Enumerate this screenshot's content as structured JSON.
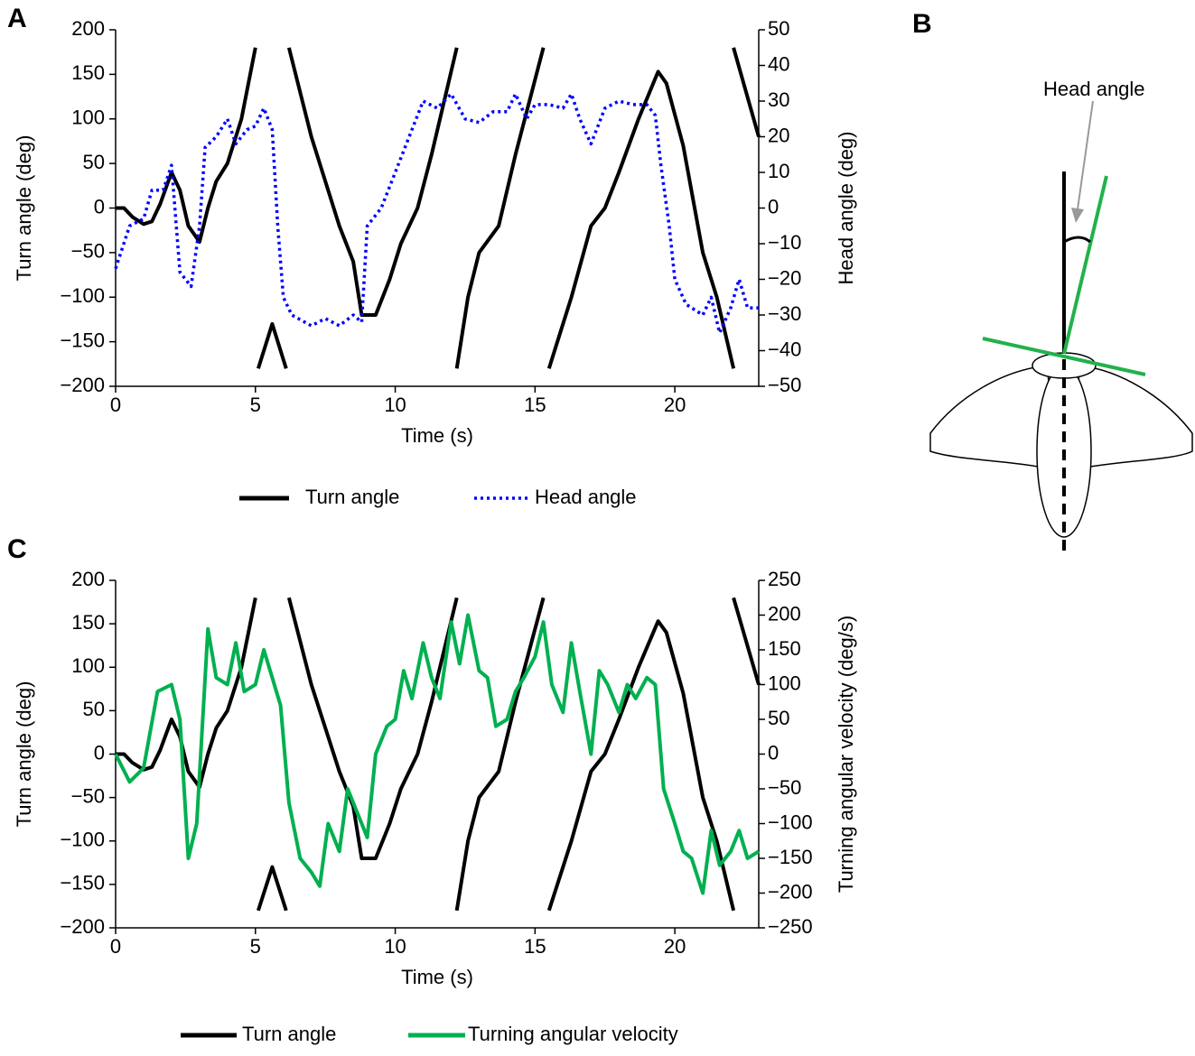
{
  "chart_data": [
    {
      "type": "line",
      "panel_label": "A",
      "xlabel": "Time (s)",
      "ylabel": "Turn angle (deg)",
      "y2label": "Head angle (deg)",
      "xlim": [
        0,
        23
      ],
      "xticks": [
        0,
        5,
        10,
        15,
        20
      ],
      "ylim": [
        -200,
        200
      ],
      "yticks": [
        {
          "value": -200,
          "label": "−200"
        },
        {
          "value": -150,
          "label": "−150"
        },
        {
          "value": -100,
          "label": "−100"
        },
        {
          "value": -50,
          "label": "−50"
        },
        0,
        50,
        100,
        150,
        200
      ],
      "y2lim": [
        -50,
        50
      ],
      "y2ticks": [
        {
          "value": -50,
          "label": "−50"
        },
        {
          "value": -40,
          "label": "−40"
        },
        {
          "value": -30,
          "label": "−30"
        },
        {
          "value": -20,
          "label": "−20"
        },
        {
          "value": -10,
          "label": "−10"
        },
        0,
        10,
        20,
        30,
        40,
        50
      ],
      "series": [
        {
          "name": "Turn angle",
          "color": "#000000",
          "dash": "solid",
          "x": [
            0,
            0.3,
            0.6,
            1,
            1.3,
            1.6,
            2,
            2.3,
            2.6,
            3,
            3.3,
            3.6,
            4,
            4.5,
            5,
            null,
            5.1,
            5.6,
            6.1,
            null,
            6.2,
            7,
            8,
            8.5,
            8.8,
            9.3,
            9.8,
            10.2,
            10.8,
            11.3,
            12.2,
            null,
            12.2,
            12.6,
            13,
            13.7,
            14.3,
            15.3,
            null,
            15.5,
            15.8,
            16.3,
            17,
            17.5,
            18,
            18.7,
            19.4,
            19.7,
            20.3,
            21,
            21.5,
            22.1,
            null,
            22.1,
            23
          ],
          "values": [
            0,
            0,
            -10,
            -18,
            -15,
            5,
            40,
            20,
            -20,
            -38,
            0,
            30,
            50,
            100,
            180,
            null,
            -180,
            -130,
            -180,
            null,
            180,
            80,
            -20,
            -60,
            -120,
            -120,
            -80,
            -40,
            0,
            60,
            180,
            null,
            -180,
            -100,
            -50,
            -20,
            60,
            180,
            null,
            -180,
            -150,
            -100,
            -20,
            0,
            40,
            100,
            153,
            140,
            70,
            -50,
            -100,
            -180,
            null,
            180,
            80
          ]
        },
        {
          "name": "Head angle",
          "color": "#0000ff",
          "dash": "dotted",
          "axis": "y2",
          "x": [
            0,
            0.5,
            1,
            1.3,
            1.7,
            2,
            2.3,
            2.7,
            3,
            3.2,
            3.6,
            4,
            4.3,
            4.7,
            5,
            5.3,
            5.6,
            5.8,
            6,
            6.3,
            7,
            7.5,
            8,
            8.5,
            8.8,
            9,
            9.5,
            10,
            10.5,
            11,
            11.5,
            12,
            12.5,
            13,
            13.5,
            14,
            14.3,
            14.7,
            15,
            15.5,
            16,
            16.3,
            16.6,
            17,
            17.5,
            18,
            18.5,
            19,
            19.3,
            19.5,
            19.8,
            20,
            20.4,
            21,
            21.3,
            21.6,
            22,
            22.3,
            22.6,
            23
          ],
          "values": [
            -17,
            -5,
            -3,
            5,
            5,
            12,
            -18,
            -22,
            -5,
            17,
            20,
            25,
            18,
            22,
            23,
            28,
            22,
            -5,
            -25,
            -30,
            -33,
            -31,
            -33,
            -30,
            -32,
            -5,
            0,
            10,
            20,
            30,
            28,
            32,
            25,
            24,
            27,
            27,
            32,
            25,
            29,
            29,
            28,
            32,
            25,
            18,
            28,
            30,
            29,
            29,
            26,
            12,
            -5,
            -20,
            -27,
            -30,
            -25,
            -35,
            -28,
            -20,
            -28,
            -28
          ]
        }
      ]
    },
    {
      "type": "line",
      "panel_label": "C",
      "xlabel": "Time (s)",
      "ylabel": "Turn angle (deg)",
      "y2label": "Turning angular velocity (deg/s)",
      "xlim": [
        0,
        23
      ],
      "xticks": [
        0,
        5,
        10,
        15,
        20
      ],
      "ylim": [
        -200,
        200
      ],
      "yticks": [
        {
          "value": -200,
          "label": "−200"
        },
        {
          "value": -150,
          "label": "−150"
        },
        {
          "value": -100,
          "label": "−100"
        },
        {
          "value": -50,
          "label": "−50"
        },
        0,
        50,
        100,
        150,
        200
      ],
      "y2lim": [
        -250,
        250
      ],
      "y2ticks": [
        {
          "value": -250,
          "label": "−250"
        },
        {
          "value": -200,
          "label": "−200"
        },
        {
          "value": -150,
          "label": "−150"
        },
        {
          "value": -100,
          "label": "−100"
        },
        {
          "value": -50,
          "label": "−50"
        },
        0,
        50,
        100,
        150,
        200,
        250
      ],
      "series": [
        {
          "name": "Turn angle",
          "color": "#000000",
          "dash": "solid",
          "x": [
            0,
            0.3,
            0.6,
            1,
            1.3,
            1.6,
            2,
            2.3,
            2.6,
            3,
            3.3,
            3.6,
            4,
            4.5,
            5,
            null,
            5.1,
            5.6,
            6.1,
            null,
            6.2,
            7,
            8,
            8.5,
            8.8,
            9.3,
            9.8,
            10.2,
            10.8,
            11.3,
            12.2,
            null,
            12.2,
            12.6,
            13,
            13.7,
            14.3,
            15.3,
            null,
            15.5,
            15.8,
            16.3,
            17,
            17.5,
            18,
            18.7,
            19.4,
            19.7,
            20.3,
            21,
            21.5,
            22.1,
            null,
            22.1,
            23
          ],
          "values": [
            0,
            0,
            -10,
            -18,
            -15,
            5,
            40,
            20,
            -20,
            -38,
            0,
            30,
            50,
            100,
            180,
            null,
            -180,
            -130,
            -180,
            null,
            180,
            80,
            -20,
            -60,
            -120,
            -120,
            -80,
            -40,
            0,
            60,
            180,
            null,
            -180,
            -100,
            -50,
            -20,
            60,
            180,
            null,
            -180,
            -150,
            -100,
            -20,
            0,
            40,
            100,
            153,
            140,
            70,
            -50,
            -100,
            -180,
            null,
            180,
            80
          ]
        },
        {
          "name": "Turning angular velocity",
          "color": "#00b050",
          "dash": "solid",
          "axis": "y2",
          "x": [
            0,
            0.5,
            1,
            1.5,
            2,
            2.3,
            2.6,
            2.9,
            3.3,
            3.6,
            4,
            4.3,
            4.6,
            5,
            5.3,
            5.6,
            5.9,
            6.2,
            6.6,
            7,
            7.3,
            7.6,
            8,
            8.3,
            8.7,
            9,
            9.3,
            9.7,
            10,
            10.3,
            10.6,
            11,
            11.3,
            11.6,
            12,
            12.3,
            12.6,
            13,
            13.3,
            13.6,
            14,
            14.3,
            14.6,
            15,
            15.3,
            15.6,
            16,
            16.3,
            16.6,
            17,
            17.3,
            17.6,
            18,
            18.3,
            18.6,
            19,
            19.3,
            19.6,
            20,
            20.3,
            20.6,
            21,
            21.3,
            21.6,
            22,
            22.3,
            22.6,
            23
          ],
          "values": [
            0,
            -40,
            -20,
            90,
            100,
            50,
            -150,
            -100,
            180,
            110,
            100,
            160,
            90,
            100,
            150,
            110,
            70,
            -70,
            -150,
            -170,
            -190,
            -100,
            -140,
            -50,
            -90,
            -120,
            0,
            40,
            50,
            120,
            80,
            160,
            110,
            80,
            190,
            130,
            200,
            120,
            110,
            40,
            50,
            90,
            110,
            140,
            190,
            100,
            60,
            160,
            90,
            0,
            120,
            100,
            60,
            100,
            80,
            110,
            100,
            -50,
            -100,
            -140,
            -150,
            -200,
            -110,
            -160,
            -140,
            -110,
            -150,
            -140
          ]
        }
      ]
    }
  ],
  "diagram": {
    "panel_label": "B",
    "label": "Head angle"
  }
}
